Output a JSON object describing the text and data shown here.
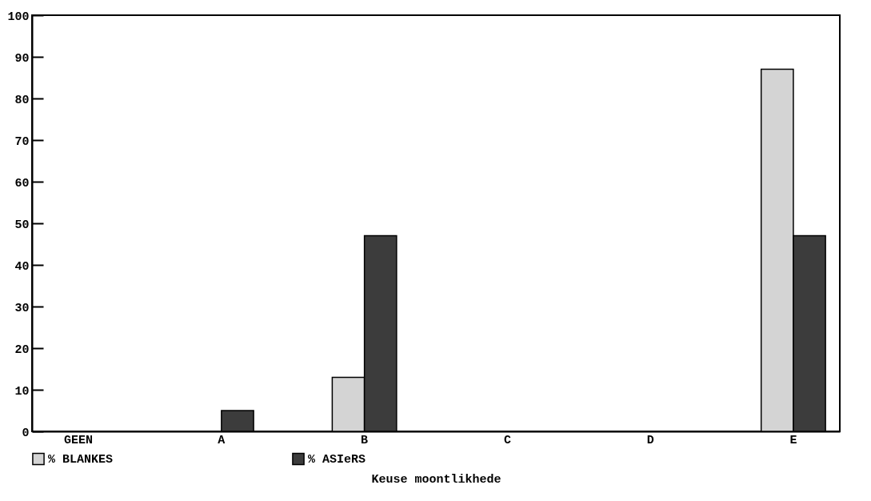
{
  "chart_data": {
    "type": "bar",
    "xlabel": "Keuse moontlikhede",
    "categories": [
      "GEEN",
      "A",
      "B",
      "C",
      "D",
      "E"
    ],
    "series": [
      {
        "name": "% BLANKES",
        "color": "#d4d4d4",
        "values": [
          0,
          0,
          13,
          0,
          0,
          87
        ]
      },
      {
        "name": "% ASIeRS",
        "color": "#3c3c3c",
        "values": [
          0,
          5,
          47,
          0,
          0,
          47
        ]
      }
    ],
    "ylim": [
      0,
      100
    ],
    "yticks": [
      0,
      10,
      20,
      30,
      40,
      50,
      60,
      70,
      80,
      90,
      100
    ],
    "grid": false,
    "legend": "bottom"
  }
}
